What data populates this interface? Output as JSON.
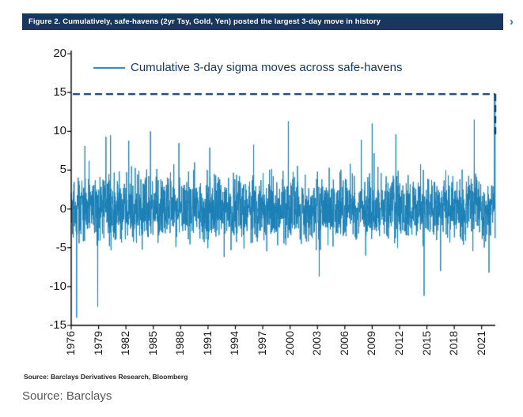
{
  "header": {
    "title": "Figure 2. Cumulatively, safe-havens (2yr Tsy, Gold, Yen) posted the largest 3-day move in history",
    "chevron": "›"
  },
  "footnote": "Source: Barclays Derivatives Research, Bloomberg",
  "caption": "Source: Barclays",
  "colors": {
    "header_bg": "#17375e",
    "header_text": "#ffffff",
    "chevron": "#2e75b6",
    "series": "#1a7fb5",
    "record_line": "#17375e",
    "axis": "#000000",
    "tick_text": "#1a1a1a",
    "caption_text": "#595959"
  },
  "chart_data": {
    "type": "line",
    "title": "",
    "xlabel": "",
    "ylabel": "",
    "legend_label": "Cumulative 3-day sigma moves across safe-havens",
    "legend_position": "top",
    "grid": false,
    "ylim": [
      -15,
      20
    ],
    "yticks": [
      20,
      15,
      10,
      5,
      0,
      -5,
      -10,
      -15
    ],
    "x_range": [
      1976,
      2022.5
    ],
    "xticks": [
      1976,
      1979,
      1982,
      1985,
      1988,
      1991,
      1994,
      1997,
      2000,
      2003,
      2006,
      2009,
      2012,
      2015,
      2018,
      2021
    ],
    "record_level": 14.8,
    "points_per_year": 52,
    "noise_sd": 2.05,
    "noise_clip": 7.8,
    "seed": 42,
    "notable_spikes": [
      {
        "x": 1976.6,
        "y": -14.0
      },
      {
        "x": 1977.5,
        "y": 8.1
      },
      {
        "x": 1978.9,
        "y": -12.6
      },
      {
        "x": 1979.8,
        "y": 9.3
      },
      {
        "x": 1980.3,
        "y": 9.5
      },
      {
        "x": 1982.3,
        "y": 8.8
      },
      {
        "x": 1984.7,
        "y": 10.0
      },
      {
        "x": 1987.8,
        "y": 8.5
      },
      {
        "x": 1991.2,
        "y": 7.9
      },
      {
        "x": 1996.0,
        "y": 8.3
      },
      {
        "x": 1999.8,
        "y": 11.3
      },
      {
        "x": 2003.2,
        "y": -8.7
      },
      {
        "x": 2007.8,
        "y": 8.9
      },
      {
        "x": 2009.0,
        "y": 11.0
      },
      {
        "x": 2011.6,
        "y": 9.6
      },
      {
        "x": 2014.7,
        "y": -11.2
      },
      {
        "x": 2016.5,
        "y": -8.0
      },
      {
        "x": 2020.2,
        "y": 11.5
      },
      {
        "x": 2021.8,
        "y": -8.2
      },
      {
        "x": 2022.4,
        "y": 14.8
      }
    ]
  }
}
